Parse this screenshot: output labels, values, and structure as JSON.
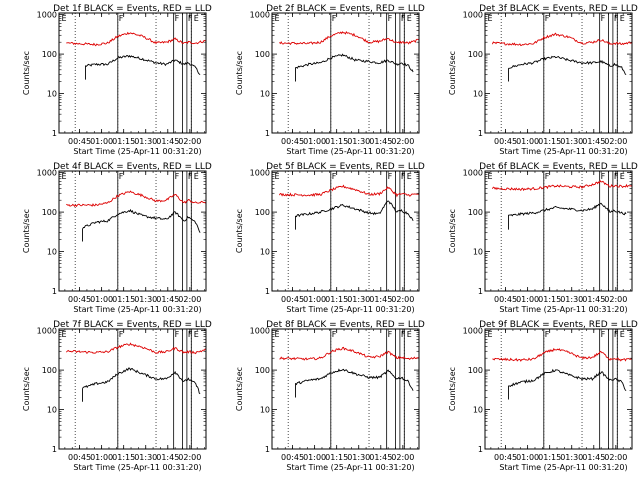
{
  "figure": {
    "xlabel": "Start Time (25-Apr-11 00:31:20)",
    "ylabel": "Counts/sec",
    "x_ticks": [
      "00:45",
      "01:00",
      "01:15",
      "01:30",
      "01:45",
      "02:00"
    ],
    "y_ticks": [
      "1",
      "10",
      "100",
      "1000"
    ]
  },
  "chart_data": [
    {
      "type": "line",
      "title": "Det 1f BLACK = Events, RED = LLD",
      "yscale": "log",
      "ylim": [
        1,
        1100
      ],
      "xlim_minutes_after_0031": [
        0,
        100
      ],
      "grid": false,
      "series": [
        {
          "color": "#000000",
          "x": [
            18,
            25,
            33,
            40,
            48,
            57,
            66,
            73,
            79,
            85,
            88,
            93,
            96
          ],
          "y": [
            50,
            55,
            55,
            80,
            90,
            75,
            60,
            55,
            70,
            55,
            60,
            45,
            30
          ]
        },
        {
          "color": "#dd0000",
          "x": [
            5,
            25,
            33,
            40,
            48,
            57,
            66,
            73,
            79,
            85,
            88,
            93,
            100
          ],
          "y": [
            190,
            175,
            190,
            280,
            350,
            280,
            190,
            200,
            240,
            185,
            200,
            190,
            220
          ]
        }
      ],
      "markers": {
        "dotted": [
          11,
          40,
          66,
          90
        ],
        "solid": [
          40,
          78,
          84,
          87,
          90
        ],
        "labels": [
          {
            "text": "E",
            "x": 1
          },
          {
            "text": "F",
            "x": 40
          },
          {
            "text": "F",
            "x": 78
          },
          {
            "text": "F",
            "x": 87
          },
          {
            "text": "E",
            "x": 91
          }
        ]
      }
    },
    {
      "type": "line",
      "title": "Det 2f BLACK = Events, RED = LLD",
      "yscale": "log",
      "ylim": [
        1,
        1100
      ],
      "xlim_minutes_after_0031": [
        0,
        100
      ],
      "grid": false,
      "series": [
        {
          "color": "#000000",
          "x": [
            16,
            25,
            33,
            40,
            48,
            57,
            66,
            73,
            79,
            85,
            88,
            93,
            96
          ],
          "y": [
            45,
            55,
            60,
            80,
            95,
            70,
            65,
            60,
            70,
            55,
            60,
            50,
            35
          ]
        },
        {
          "color": "#dd0000",
          "x": [
            5,
            25,
            33,
            40,
            48,
            57,
            66,
            73,
            79,
            85,
            88,
            93,
            100
          ],
          "y": [
            190,
            185,
            200,
            290,
            360,
            300,
            200,
            210,
            250,
            190,
            200,
            190,
            230
          ]
        }
      ],
      "markers": {
        "dotted": [
          11,
          40,
          66,
          90
        ],
        "solid": [
          40,
          78,
          84,
          87,
          90
        ],
        "labels": [
          {
            "text": "E",
            "x": 1
          },
          {
            "text": "F",
            "x": 40
          },
          {
            "text": "F",
            "x": 78
          },
          {
            "text": "F",
            "x": 87
          },
          {
            "text": "E",
            "x": 91
          }
        ]
      }
    },
    {
      "type": "line",
      "title": "Det 3f BLACK = Events, RED = LLD",
      "yscale": "log",
      "ylim": [
        1,
        1100
      ],
      "xlim_minutes_after_0031": [
        0,
        100
      ],
      "grid": false,
      "series": [
        {
          "color": "#000000",
          "x": [
            16,
            25,
            33,
            40,
            48,
            57,
            66,
            73,
            79,
            85,
            88,
            93,
            96
          ],
          "y": [
            45,
            55,
            60,
            75,
            85,
            70,
            60,
            60,
            65,
            50,
            55,
            45,
            30
          ]
        },
        {
          "color": "#dd0000",
          "x": [
            5,
            25,
            33,
            40,
            48,
            57,
            66,
            73,
            79,
            85,
            88,
            93,
            100
          ],
          "y": [
            190,
            175,
            185,
            260,
            320,
            270,
            190,
            200,
            230,
            180,
            190,
            180,
            200
          ]
        }
      ],
      "markers": {
        "dotted": [
          11,
          40,
          66,
          90
        ],
        "solid": [
          40,
          78,
          84,
          87,
          90
        ],
        "labels": [
          {
            "text": "E",
            "x": 1
          },
          {
            "text": "F",
            "x": 40
          },
          {
            "text": "F",
            "x": 78
          },
          {
            "text": "F",
            "x": 87
          },
          {
            "text": "E",
            "x": 91
          }
        ]
      }
    },
    {
      "type": "line",
      "title": "Det 4f BLACK = Events, RED = LLD",
      "yscale": "log",
      "ylim": [
        1,
        1100
      ],
      "xlim_minutes_after_0031": [
        0,
        100
      ],
      "grid": false,
      "series": [
        {
          "color": "#000000",
          "x": [
            16,
            25,
            33,
            40,
            48,
            57,
            66,
            73,
            79,
            85,
            88,
            93,
            96
          ],
          "y": [
            40,
            55,
            60,
            90,
            110,
            80,
            70,
            65,
            100,
            60,
            75,
            55,
            30
          ]
        },
        {
          "color": "#dd0000",
          "x": [
            5,
            25,
            33,
            40,
            48,
            57,
            66,
            73,
            79,
            85,
            88,
            93,
            100
          ],
          "y": [
            150,
            150,
            170,
            260,
            330,
            260,
            190,
            200,
            280,
            170,
            200,
            170,
            180
          ]
        }
      ],
      "markers": {
        "dotted": [
          11,
          40,
          66,
          90
        ],
        "solid": [
          40,
          78,
          84,
          87,
          90
        ],
        "labels": [
          {
            "text": "E",
            "x": 1
          },
          {
            "text": "F",
            "x": 40
          },
          {
            "text": "F",
            "x": 78
          },
          {
            "text": "F",
            "x": 87
          },
          {
            "text": "E",
            "x": 91
          }
        ]
      }
    },
    {
      "type": "line",
      "title": "Det 5f BLACK = Events, RED = LLD",
      "yscale": "log",
      "ylim": [
        1,
        1100
      ],
      "xlim_minutes_after_0031": [
        0,
        100
      ],
      "grid": false,
      "series": [
        {
          "color": "#000000",
          "x": [
            16,
            25,
            33,
            40,
            48,
            57,
            66,
            73,
            79,
            85,
            88,
            93,
            96
          ],
          "y": [
            80,
            90,
            100,
            120,
            150,
            120,
            95,
            90,
            200,
            100,
            110,
            90,
            60
          ]
        },
        {
          "color": "#dd0000",
          "x": [
            5,
            25,
            33,
            40,
            48,
            57,
            66,
            73,
            79,
            85,
            88,
            93,
            100
          ],
          "y": [
            280,
            270,
            280,
            360,
            450,
            370,
            280,
            290,
            420,
            270,
            290,
            270,
            290
          ]
        }
      ],
      "markers": {
        "dotted": [
          11,
          40,
          66,
          90
        ],
        "solid": [
          40,
          78,
          84,
          87,
          90
        ],
        "labels": [
          {
            "text": "E",
            "x": 1
          },
          {
            "text": "F",
            "x": 40
          },
          {
            "text": "F",
            "x": 78
          },
          {
            "text": "F",
            "x": 87
          },
          {
            "text": "E",
            "x": 91
          }
        ]
      }
    },
    {
      "type": "line",
      "title": "Det 6f BLACK = Events, RED = LLD",
      "yscale": "log",
      "ylim": [
        1,
        1100
      ],
      "xlim_minutes_after_0031": [
        0,
        100
      ],
      "grid": false,
      "series": [
        {
          "color": "#000000",
          "x": [
            16,
            25,
            33,
            40,
            48,
            57,
            66,
            73,
            79,
            85,
            88,
            93,
            96
          ],
          "y": [
            80,
            90,
            95,
            110,
            130,
            120,
            110,
            120,
            170,
            100,
            110,
            95,
            90
          ]
        },
        {
          "color": "#dd0000",
          "x": [
            5,
            25,
            33,
            40,
            48,
            57,
            66,
            73,
            79,
            85,
            88,
            93,
            100
          ],
          "y": [
            400,
            380,
            390,
            420,
            460,
            440,
            430,
            500,
            600,
            450,
            470,
            450,
            480
          ]
        }
      ],
      "markers": {
        "dotted": [
          11,
          40,
          66,
          90
        ],
        "solid": [
          40,
          78,
          84,
          87,
          90
        ],
        "labels": [
          {
            "text": "E",
            "x": 1
          },
          {
            "text": "F",
            "x": 40
          },
          {
            "text": "F",
            "x": 78
          },
          {
            "text": "F",
            "x": 87
          },
          {
            "text": "E",
            "x": 91
          }
        ]
      }
    },
    {
      "type": "line",
      "title": "Det 7f BLACK = Events, RED = LLD",
      "yscale": "log",
      "ylim": [
        1,
        1100
      ],
      "xlim_minutes_after_0031": [
        0,
        100
      ],
      "grid": false,
      "series": [
        {
          "color": "#000000",
          "x": [
            16,
            25,
            33,
            40,
            48,
            57,
            66,
            73,
            79,
            85,
            88,
            93,
            96
          ],
          "y": [
            35,
            45,
            50,
            80,
            110,
            80,
            60,
            60,
            90,
            50,
            60,
            45,
            25
          ]
        },
        {
          "color": "#dd0000",
          "x": [
            5,
            25,
            33,
            40,
            48,
            57,
            66,
            73,
            79,
            85,
            88,
            93,
            100
          ],
          "y": [
            300,
            280,
            290,
            380,
            460,
            380,
            280,
            290,
            360,
            280,
            290,
            280,
            330
          ]
        }
      ],
      "markers": {
        "dotted": [
          11,
          40,
          66,
          90
        ],
        "solid": [
          40,
          78,
          84,
          87,
          90
        ],
        "labels": [
          {
            "text": "E",
            "x": 1
          },
          {
            "text": "F",
            "x": 40
          },
          {
            "text": "F",
            "x": 78
          },
          {
            "text": "F",
            "x": 87
          },
          {
            "text": "E",
            "x": 91
          }
        ]
      }
    },
    {
      "type": "line",
      "title": "Det 8f BLACK = Events, RED = LLD",
      "yscale": "log",
      "ylim": [
        1,
        1100
      ],
      "xlim_minutes_after_0031": [
        0,
        100
      ],
      "grid": false,
      "series": [
        {
          "color": "#000000",
          "x": [
            16,
            25,
            33,
            40,
            48,
            57,
            66,
            73,
            79,
            85,
            88,
            93,
            96
          ],
          "y": [
            45,
            55,
            60,
            85,
            105,
            80,
            65,
            65,
            95,
            60,
            65,
            50,
            30
          ]
        },
        {
          "color": "#dd0000",
          "x": [
            5,
            25,
            33,
            40,
            48,
            57,
            66,
            73,
            79,
            85,
            88,
            93,
            100
          ],
          "y": [
            200,
            190,
            200,
            290,
            360,
            290,
            210,
            220,
            290,
            200,
            210,
            190,
            210
          ]
        }
      ],
      "markers": {
        "dotted": [
          11,
          40,
          66,
          90
        ],
        "solid": [
          40,
          78,
          84,
          87,
          90
        ],
        "labels": [
          {
            "text": "E",
            "x": 1
          },
          {
            "text": "F",
            "x": 40
          },
          {
            "text": "F",
            "x": 78
          },
          {
            "text": "F",
            "x": 87
          },
          {
            "text": "E",
            "x": 91
          }
        ]
      }
    },
    {
      "type": "line",
      "title": "Det 9f BLACK = Events, RED = LLD",
      "yscale": "log",
      "ylim": [
        1,
        1100
      ],
      "xlim_minutes_after_0031": [
        0,
        100
      ],
      "grid": false,
      "series": [
        {
          "color": "#000000",
          "x": [
            16,
            25,
            33,
            40,
            48,
            57,
            66,
            73,
            79,
            85,
            88,
            93,
            96
          ],
          "y": [
            40,
            50,
            55,
            80,
            100,
            75,
            60,
            60,
            90,
            55,
            60,
            50,
            30
          ]
        },
        {
          "color": "#dd0000",
          "x": [
            5,
            25,
            33,
            40,
            48,
            57,
            66,
            73,
            79,
            85,
            88,
            93,
            100
          ],
          "y": [
            190,
            180,
            190,
            270,
            340,
            280,
            200,
            210,
            290,
            190,
            200,
            180,
            190
          ]
        }
      ],
      "markers": {
        "dotted": [
          11,
          40,
          66,
          90
        ],
        "solid": [
          40,
          78,
          84,
          87,
          90
        ],
        "labels": [
          {
            "text": "E",
            "x": 1
          },
          {
            "text": "F",
            "x": 40
          },
          {
            "text": "F",
            "x": 78
          },
          {
            "text": "F",
            "x": 87
          },
          {
            "text": "E",
            "x": 91
          }
        ]
      }
    }
  ]
}
